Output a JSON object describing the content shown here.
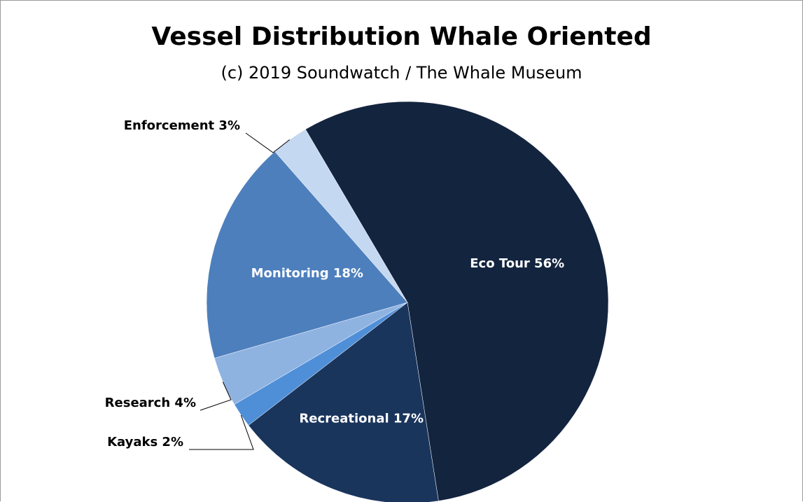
{
  "chart_data": {
    "type": "pie",
    "title": "Vessel Distribution Whale Oriented",
    "subtitle": "(c) 2019 Soundwatch / The Whale Museum",
    "slices": [
      {
        "label": "Eco Tour",
        "value": 56,
        "display": "Eco Tour 56%",
        "color": "#13243f"
      },
      {
        "label": "Recreational",
        "value": 17,
        "display": "Recreational 17%",
        "color": "#1a355c"
      },
      {
        "label": "Kayaks",
        "value": 2,
        "display": "Kayaks 2%",
        "color": "#4f8fd8"
      },
      {
        "label": "Research",
        "value": 4,
        "display": "Research 4%",
        "color": "#8fb3e1"
      },
      {
        "label": "Monitoring",
        "value": 18,
        "display": "Monitoring 18%",
        "color": "#4d7fbd"
      },
      {
        "label": "Enforcement",
        "value": 3,
        "display": "Enforcement 3%",
        "color": "#c5d8f1"
      }
    ]
  }
}
